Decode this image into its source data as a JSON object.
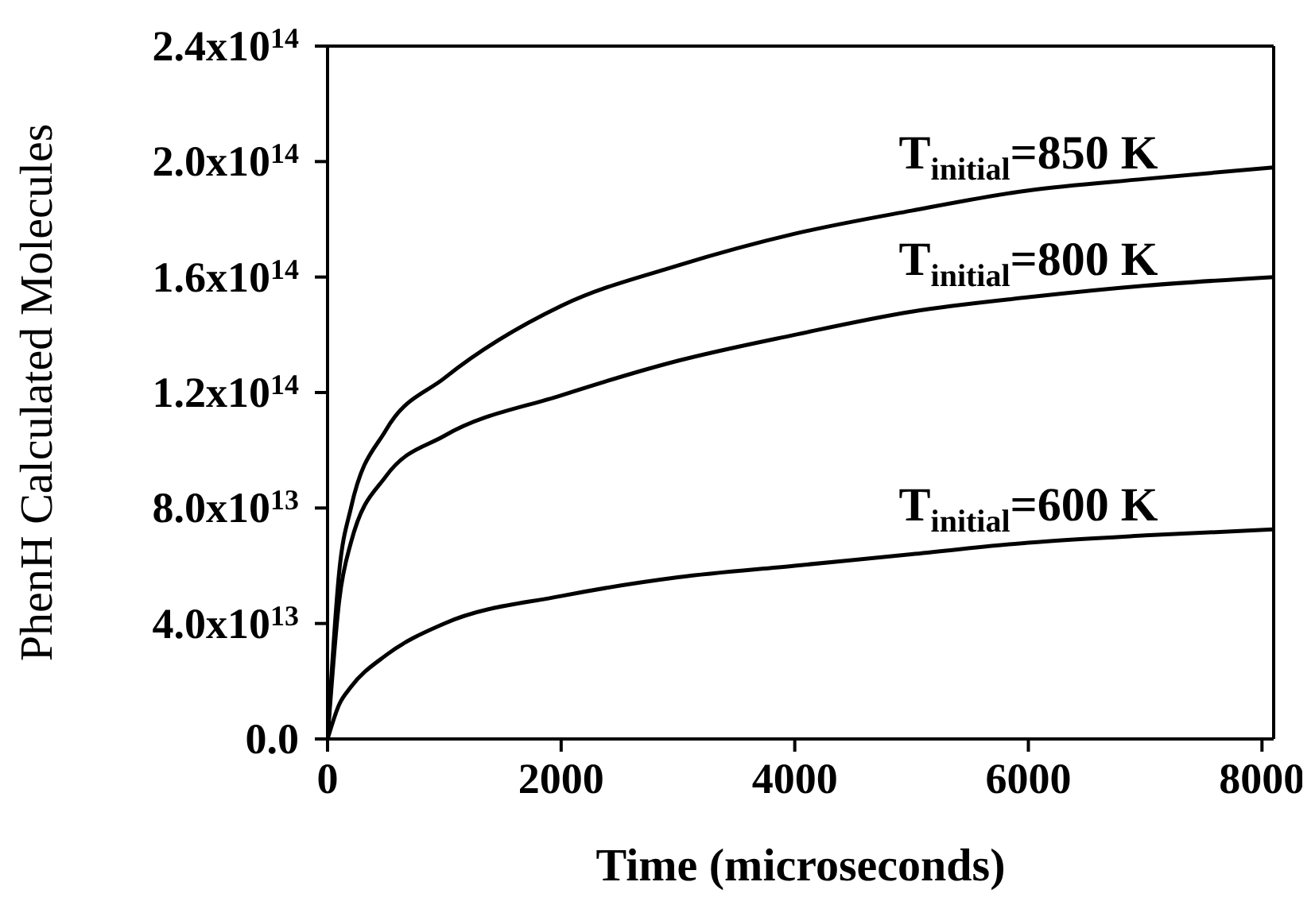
{
  "chart_data": {
    "type": "line",
    "xlabel": "Time (microseconds)",
    "ylabel": "PhenH Calculated Molecules",
    "x": [
      0,
      100,
      200,
      500,
      1000,
      2000,
      3000,
      4000,
      5000,
      6000,
      7000,
      8100
    ],
    "series": [
      {
        "name": "T$_{initial}$=850 K",
        "color": "#000000",
        "values": [
          0,
          58000000000000.0,
          80000000000000.0,
          107000000000000.0,
          125000000000000.0,
          150000000000000.0,
          164000000000000.0,
          175000000000000.0,
          183000000000000.0,
          190000000000000.0,
          194000000000000.0,
          198000000000000.0
        ]
      },
      {
        "name": "T$_{initial}$=800 K",
        "color": "#000000",
        "values": [
          0,
          48000000000000.0,
          68000000000000.0,
          91000000000000.0,
          105000000000000.0,
          119000000000000.0,
          131000000000000.0,
          140000000000000.0,
          148000000000000.0,
          153000000000000.0,
          157000000000000.0,
          160000000000000.0
        ]
      },
      {
        "name": "T$_{initial}$=600 K",
        "color": "#000000",
        "values": [
          0,
          12000000000000.0,
          18000000000000.0,
          29000000000000.0,
          40000000000000.0,
          49500000000000.0,
          56000000000000.0,
          60000000000000.0,
          64000000000000.0,
          68000000000000.0,
          70500000000000.0,
          72600000000000.0
        ]
      }
    ],
    "xlim": [
      0,
      8100
    ],
    "xticks": [
      0,
      2000,
      4000,
      6000,
      8000
    ],
    "ylim": [
      0,
      240000000000000.0
    ],
    "yticks": [
      {
        "value": 0,
        "label": "0.0"
      },
      {
        "value": 40000000000000.0,
        "label": "4.0x10$^{13}$"
      },
      {
        "value": 80000000000000.0,
        "label": "8.0x10$^{13}$"
      },
      {
        "value": 120000000000000.0,
        "label": "1.2x10$^{14}$"
      },
      {
        "value": 160000000000000.0,
        "label": "1.6x10$^{14}$"
      },
      {
        "value": 200000000000000.0,
        "label": "2.0x10$^{14}$"
      },
      {
        "value": 240000000000000.0,
        "label": "2.4x10$^{14}$"
      }
    ],
    "grid": false,
    "legend": false,
    "marker": "none",
    "line_style": "solid"
  }
}
